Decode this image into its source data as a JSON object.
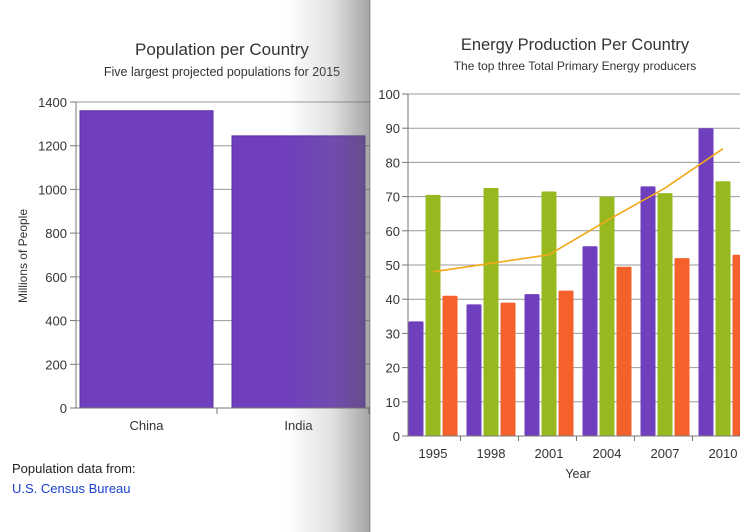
{
  "chart_data": [
    {
      "type": "bar",
      "title": "Population per Country",
      "subtitle": "Five largest projected populations for 2015",
      "xlabel": "",
      "ylabel": "Millions of People",
      "categories": [
        "China",
        "India"
      ],
      "values": [
        1360,
        1245
      ],
      "ylim": [
        0,
        1400
      ],
      "yticks": [
        0,
        200,
        400,
        600,
        800,
        1000,
        1200,
        1400
      ],
      "grid": true,
      "color": "#6f3fbe"
    },
    {
      "type": "bar",
      "title": "Energy Production Per Country",
      "subtitle": "The top three Total Primary Energy producers",
      "xlabel": "Year",
      "ylabel": "",
      "categories": [
        "1995",
        "1998",
        "2001",
        "2004",
        "2007",
        "2010"
      ],
      "series": [
        {
          "values": [
            33.5,
            38.5,
            41.5,
            55.5,
            73,
            90
          ],
          "color": "#6f3fbe"
        },
        {
          "values": [
            70.5,
            72.5,
            71.5,
            70,
            71,
            74.5
          ],
          "color": "#97b91f"
        },
        {
          "values": [
            41,
            39,
            42.5,
            49.5,
            52,
            53
          ],
          "color": "#f5612a"
        },
        {
          "type": "line",
          "values": [
            48,
            50.5,
            53,
            63,
            72.5,
            84
          ],
          "color": "#f0a818"
        }
      ],
      "ylim": [
        0,
        100
      ],
      "yticks": [
        0,
        10,
        20,
        30,
        40,
        50,
        60,
        70,
        80,
        90,
        100
      ],
      "grid": true
    }
  ],
  "footer": {
    "source_label": "Population data from:",
    "source_link": "U.S. Census Bureau"
  }
}
